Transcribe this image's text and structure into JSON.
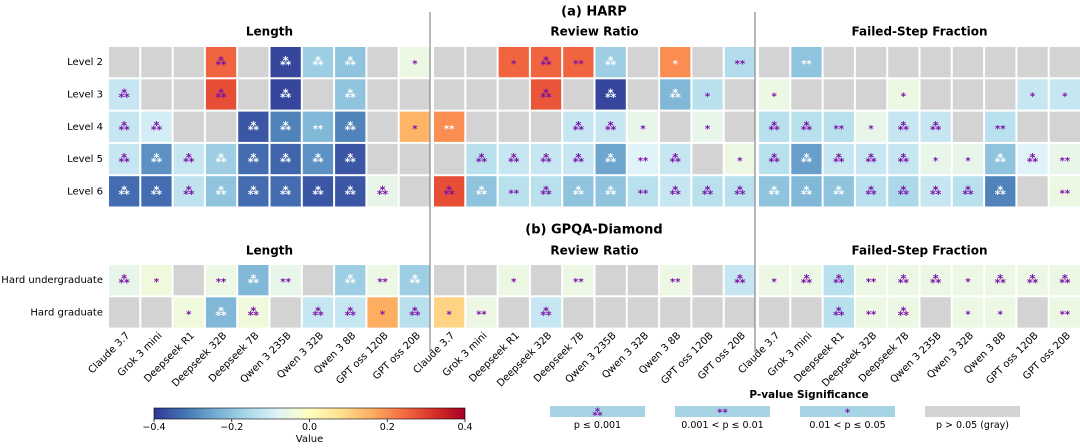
{
  "chart_data": {
    "type": "heatmap",
    "colorbar": {
      "label": "Value",
      "ticks": [
        "−0.4",
        "−0.2",
        "0.0",
        "0.2",
        "0.4"
      ],
      "range": [
        -0.4,
        0.4
      ],
      "colormap": "RdYlBu_r"
    },
    "models": [
      "Claude 3.7",
      "Grok 3 mini",
      "Deepseek R1",
      "Deepseek 32B",
      "Deepseek 7B",
      "Qwen 3 235B",
      "Qwen 3 32B",
      "Qwen 3 8B",
      "GPT oss 120B",
      "GPT oss 20B"
    ],
    "panel_titles": [
      "Length",
      "Review Ratio",
      "Failed-Step Fraction"
    ],
    "sections": [
      {
        "title": "(a) HARP",
        "rows": [
          "Level 2",
          "Level 3",
          "Level 4",
          "Level 5",
          "Level 6"
        ],
        "panels": [
          {
            "values": [
              [
                null,
                null,
                null,
                0.25,
                null,
                -0.38,
                -0.18,
                -0.2,
                null,
                -0.05
              ],
              [
                -0.12,
                null,
                null,
                0.28,
                null,
                -0.38,
                null,
                -0.2,
                null,
                null
              ],
              [
                -0.12,
                -0.1,
                null,
                null,
                -0.36,
                -0.3,
                -0.22,
                -0.3,
                null,
                0.15
              ],
              [
                -0.12,
                -0.28,
                -0.12,
                -0.18,
                -0.33,
                -0.34,
                -0.28,
                -0.36,
                null,
                null
              ],
              [
                -0.33,
                -0.33,
                -0.13,
                -0.2,
                -0.33,
                -0.33,
                -0.36,
                -0.36,
                -0.06,
                null
              ]
            ],
            "significance": [
              [
                0,
                0,
                0,
                3,
                0,
                3,
                3,
                3,
                0,
                1
              ],
              [
                3,
                0,
                0,
                3,
                0,
                3,
                0,
                3,
                0,
                0
              ],
              [
                3,
                3,
                0,
                0,
                3,
                3,
                2,
                3,
                0,
                1
              ],
              [
                3,
                3,
                3,
                3,
                3,
                3,
                3,
                3,
                0,
                0
              ],
              [
                3,
                3,
                3,
                3,
                3,
                3,
                3,
                3,
                3,
                0
              ]
            ]
          },
          {
            "values": [
              [
                null,
                null,
                0.25,
                0.25,
                0.25,
                -0.18,
                null,
                0.2,
                null,
                -0.15
              ],
              [
                null,
                null,
                null,
                0.27,
                null,
                -0.38,
                null,
                -0.22,
                -0.14,
                null
              ],
              [
                0.2,
                null,
                null,
                null,
                -0.12,
                -0.12,
                -0.06,
                null,
                -0.06,
                null
              ],
              [
                null,
                -0.14,
                -0.12,
                -0.12,
                -0.12,
                -0.25,
                -0.08,
                -0.12,
                null,
                -0.05
              ],
              [
                0.28,
                -0.2,
                -0.14,
                -0.14,
                -0.2,
                -0.2,
                -0.14,
                -0.12,
                -0.14,
                -0.14
              ]
            ],
            "significance": [
              [
                0,
                0,
                1,
                3,
                2,
                3,
                0,
                1,
                0,
                2
              ],
              [
                0,
                0,
                0,
                3,
                0,
                3,
                0,
                3,
                1,
                0
              ],
              [
                2,
                0,
                0,
                0,
                3,
                3,
                1,
                0,
                1,
                0
              ],
              [
                0,
                3,
                3,
                3,
                3,
                3,
                2,
                3,
                0,
                1
              ],
              [
                3,
                3,
                2,
                3,
                3,
                3,
                2,
                3,
                3,
                3
              ]
            ]
          },
          {
            "values": [
              [
                null,
                -0.2,
                null,
                null,
                null,
                null,
                null,
                null,
                null,
                null
              ],
              [
                -0.05,
                null,
                null,
                null,
                -0.05,
                null,
                null,
                null,
                -0.12,
                -0.12
              ],
              [
                -0.14,
                -0.14,
                -0.14,
                -0.06,
                -0.12,
                -0.12,
                null,
                -0.14,
                null,
                null
              ],
              [
                -0.14,
                -0.26,
                -0.12,
                -0.12,
                -0.12,
                -0.06,
                -0.06,
                -0.2,
                -0.08,
                -0.06
              ],
              [
                -0.2,
                -0.22,
                -0.2,
                -0.14,
                -0.16,
                -0.12,
                -0.14,
                -0.3,
                null,
                -0.05
              ]
            ],
            "significance": [
              [
                0,
                2,
                0,
                0,
                0,
                0,
                0,
                0,
                0,
                0
              ],
              [
                1,
                0,
                0,
                0,
                1,
                0,
                0,
                0,
                1,
                1
              ],
              [
                3,
                3,
                2,
                1,
                3,
                3,
                0,
                2,
                0,
                0
              ],
              [
                3,
                3,
                3,
                3,
                3,
                1,
                1,
                3,
                3,
                2
              ],
              [
                3,
                3,
                3,
                3,
                3,
                3,
                3,
                3,
                0,
                2
              ]
            ]
          }
        ]
      },
      {
        "title": "(b) GPQA-Diamond",
        "rows": [
          "Hard undergraduate",
          "Hard graduate"
        ],
        "panels": [
          {
            "values": [
              [
                -0.06,
                -0.04,
                null,
                -0.05,
                -0.22,
                -0.06,
                null,
                -0.18,
                -0.05,
                -0.18
              ],
              [
                null,
                null,
                -0.04,
                -0.22,
                -0.04,
                null,
                -0.12,
                -0.12,
                0.16,
                -0.14
              ]
            ],
            "significance": [
              [
                3,
                1,
                0,
                2,
                3,
                2,
                0,
                3,
                2,
                3
              ],
              [
                0,
                0,
                1,
                3,
                3,
                0,
                3,
                3,
                1,
                3
              ]
            ]
          },
          {
            "values": [
              [
                null,
                null,
                -0.05,
                null,
                -0.05,
                null,
                null,
                -0.05,
                null,
                -0.12
              ],
              [
                0.1,
                -0.05,
                null,
                -0.12,
                null,
                null,
                null,
                null,
                null,
                null
              ]
            ],
            "significance": [
              [
                0,
                0,
                1,
                0,
                2,
                0,
                0,
                2,
                0,
                3
              ],
              [
                1,
                2,
                0,
                3,
                0,
                0,
                0,
                0,
                0,
                0
              ]
            ]
          },
          {
            "values": [
              [
                -0.05,
                -0.05,
                -0.14,
                -0.05,
                -0.05,
                -0.05,
                -0.05,
                -0.05,
                -0.05,
                -0.05
              ],
              [
                null,
                null,
                -0.14,
                -0.05,
                -0.05,
                null,
                -0.05,
                -0.05,
                null,
                -0.05
              ]
            ],
            "significance": [
              [
                1,
                3,
                3,
                2,
                3,
                3,
                1,
                3,
                3,
                3
              ],
              [
                0,
                0,
                3,
                2,
                3,
                0,
                1,
                1,
                0,
                2
              ]
            ]
          }
        ]
      }
    ],
    "legend": {
      "title": "P-value Significance",
      "items": [
        {
          "marker": "⁂",
          "label": "p ≤ 0.001"
        },
        {
          "marker": "**",
          "label": "0.001 < p ≤ 0.01"
        },
        {
          "marker": "*",
          "label": "0.01 < p ≤ 0.05"
        },
        {
          "marker": "",
          "label": "p > 0.05 (gray)"
        }
      ]
    }
  }
}
